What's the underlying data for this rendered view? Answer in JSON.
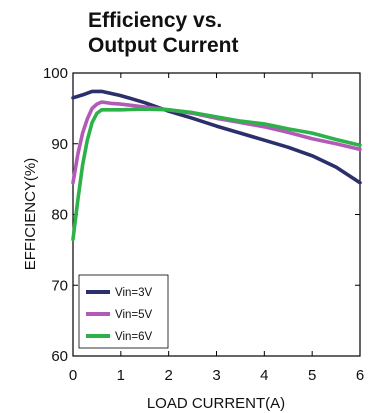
{
  "chart_data": {
    "type": "line",
    "title_lines": [
      "Efficiency vs.",
      "Output Current"
    ],
    "xlabel": "LOAD CURRENT(A)",
    "ylabel": "EFFICIENCY(%)",
    "xlim": [
      0,
      6
    ],
    "ylim": [
      60,
      100
    ],
    "xticks": [
      0,
      1,
      2,
      3,
      4,
      5,
      6
    ],
    "yticks": [
      60,
      70,
      80,
      90,
      100
    ],
    "grid": false,
    "legend_position": "bottom-left",
    "series": [
      {
        "name": "Vin=3V",
        "color": "#2b2f6b",
        "x": [
          0,
          0.2,
          0.4,
          0.6,
          0.8,
          1.0,
          1.5,
          2.0,
          2.5,
          3.0,
          3.5,
          4.0,
          4.5,
          5.0,
          5.5,
          6.0
        ],
        "y": [
          96.5,
          96.9,
          97.4,
          97.4,
          97.1,
          96.8,
          95.8,
          94.6,
          93.6,
          92.5,
          91.5,
          90.5,
          89.5,
          88.3,
          86.7,
          84.5
        ]
      },
      {
        "name": "Vin=5V",
        "color": "#b35ab8",
        "x": [
          0,
          0.1,
          0.2,
          0.3,
          0.4,
          0.5,
          0.6,
          0.8,
          1.0,
          1.5,
          2.0,
          2.5,
          3.0,
          3.5,
          4.0,
          4.5,
          5.0,
          5.5,
          6.0
        ],
        "y": [
          84.5,
          88.5,
          91.5,
          93.5,
          95.0,
          95.6,
          95.9,
          95.7,
          95.6,
          95.2,
          94.8,
          94.3,
          93.6,
          93.0,
          92.4,
          91.6,
          90.7,
          90.0,
          89.2
        ]
      },
      {
        "name": "Vin=6V",
        "color": "#2db24a",
        "x": [
          0,
          0.1,
          0.2,
          0.3,
          0.4,
          0.5,
          0.6,
          0.8,
          1.0,
          1.5,
          2.0,
          2.5,
          3.0,
          3.5,
          4.0,
          4.5,
          5.0,
          5.5,
          6.0
        ],
        "y": [
          76.5,
          82.0,
          87.0,
          90.5,
          93.0,
          94.3,
          94.8,
          94.8,
          94.8,
          94.9,
          94.8,
          94.4,
          93.8,
          93.2,
          92.8,
          92.1,
          91.5,
          90.6,
          89.8
        ]
      }
    ]
  }
}
